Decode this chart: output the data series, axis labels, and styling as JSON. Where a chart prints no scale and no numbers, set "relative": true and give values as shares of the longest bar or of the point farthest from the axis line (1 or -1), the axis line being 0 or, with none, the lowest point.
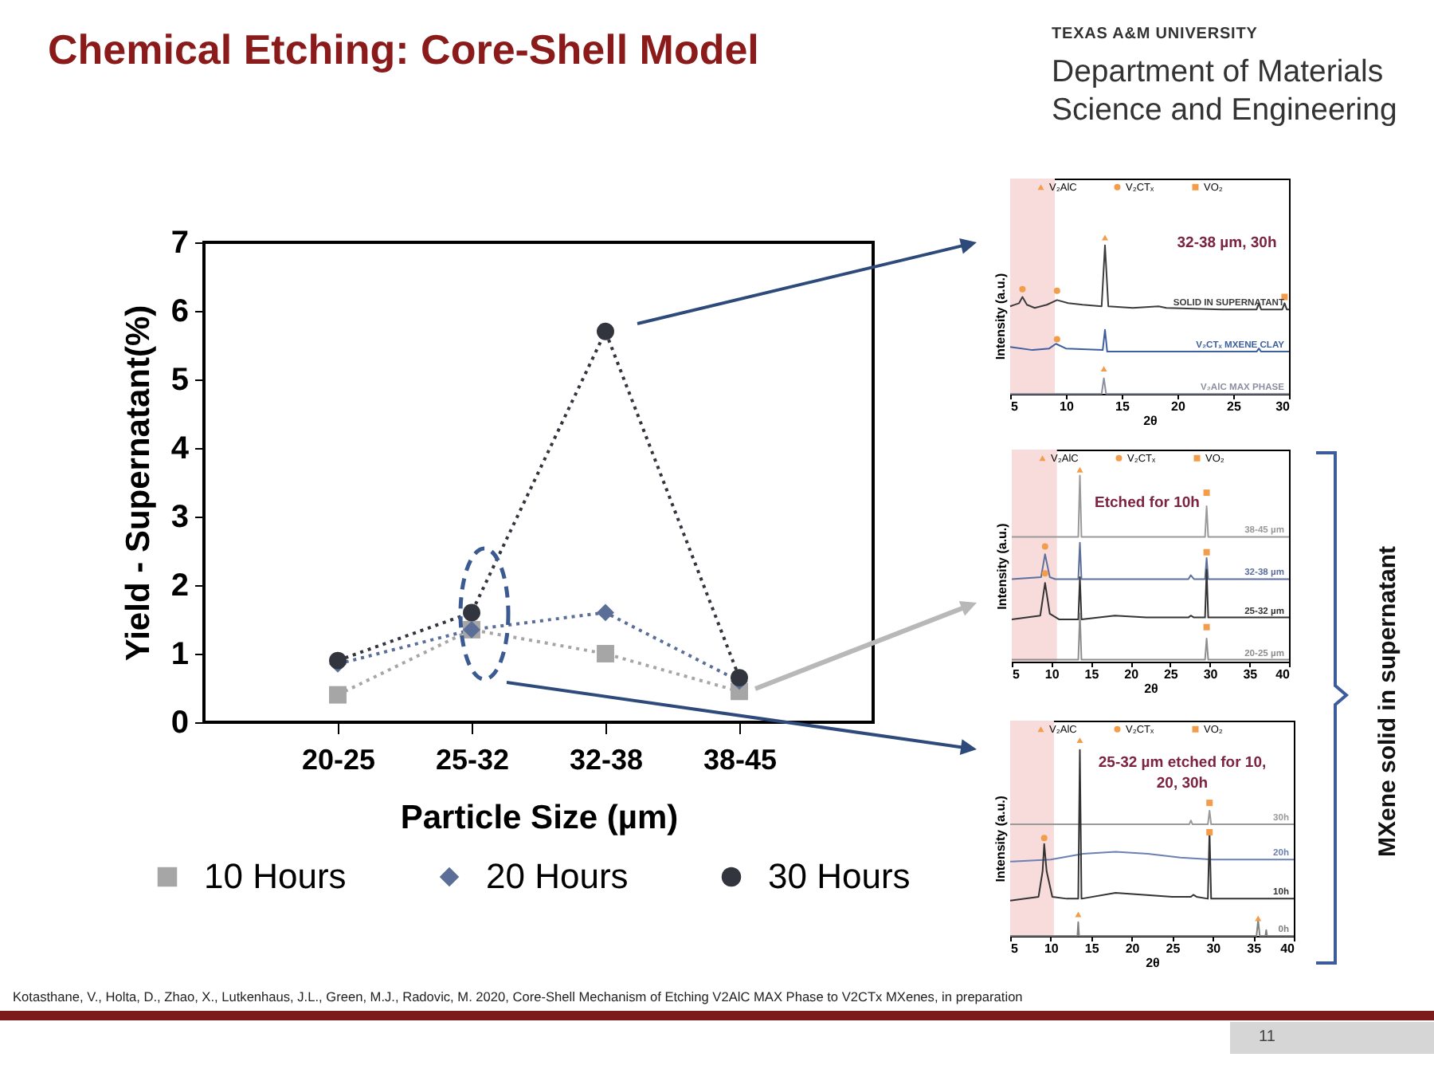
{
  "chart_data": [
    {
      "type": "line",
      "title": "Chemical Etching: Core-Shell Model",
      "xlabel": "Particle Size (µm)",
      "ylabel": "Yield - Supernatant(%)",
      "categories": [
        "20-25",
        "25-32",
        "32-38",
        "38-45"
      ],
      "ylim": [
        0,
        7
      ],
      "yticks": [
        0,
        1,
        2,
        3,
        4,
        5,
        6,
        7
      ],
      "line_style": "dotted",
      "legend": "bottom",
      "series": [
        {
          "name": "10 Hours",
          "color": "#a6a6a6",
          "marker": "square",
          "values": [
            0.4,
            1.35,
            1.0,
            0.45
          ]
        },
        {
          "name": "20 Hours",
          "color": "#5b6e98",
          "marker": "diamond",
          "values": [
            0.85,
            1.35,
            1.6,
            0.6
          ]
        },
        {
          "name": "30 Hours",
          "color": "#32353d",
          "marker": "circle",
          "values": [
            0.9,
            1.6,
            5.7,
            0.65
          ]
        }
      ],
      "annotations": [
        "TEXAS A&M UNIVERSITY",
        "Department of Materials Science and Engineering",
        "MXene solid in supernatant",
        "Kotasthane, V., Holta, D., Zhao, X., Lutkenhaus, J.L., Green, M.J., Radovic, M. 2020, Core-Shell Mechanism of Etching V2AlC MAX Phase to V2CTx MXenes, in preparation",
        "11"
      ]
    },
    {
      "type": "line",
      "title": "32-38 µm, 30h",
      "xlabel": "2θ",
      "ylabel": "Intensity (a.u.)",
      "relative": true,
      "xlim": [
        5,
        30
      ],
      "xticks": [
        5,
        10,
        15,
        20,
        25,
        30
      ],
      "legend": "top",
      "bands": [
        {
          "axis": "x",
          "from": 5,
          "to": 9,
          "color": "#f8dcdc"
        }
      ],
      "series": [
        {
          "name": "SOLID IN SUPERNATANT",
          "color": "#3c3c3c",
          "x": [
            5,
            5.8,
            6.1,
            6.5,
            7.2,
            8.3,
            9.2,
            10.2,
            11.5,
            13.2,
            13.5,
            13.8,
            16,
            18.3,
            19,
            24,
            27.1,
            27.3,
            27.5,
            29.4,
            29.6,
            29.8,
            30
          ],
          "values": [
            0.56,
            0.58,
            0.62,
            0.57,
            0.55,
            0.57,
            0.6,
            0.58,
            0.57,
            0.56,
            0.95,
            0.56,
            0.55,
            0.56,
            0.55,
            0.54,
            0.54,
            0.58,
            0.54,
            0.54,
            0.58,
            0.54,
            0.54
          ]
        },
        {
          "name": "V₂CTₓ MXENE CLAY",
          "color": "#3d5f9e",
          "x": [
            5,
            7,
            8.5,
            9.1,
            10,
            13.3,
            13.5,
            13.7,
            20,
            27.1,
            27.3,
            27.5,
            30
          ],
          "values": [
            0.3,
            0.28,
            0.29,
            0.32,
            0.29,
            0.28,
            0.41,
            0.27,
            0.27,
            0.27,
            0.29,
            0.27,
            0.27
          ]
        },
        {
          "name": "V₂AlC MAX PHASE",
          "color": "#8c8fa0",
          "x": [
            5,
            13.2,
            13.4,
            13.6,
            30
          ],
          "values": [
            0,
            0,
            0.1,
            0,
            0
          ]
        },
        {
          "name": "V₂AlC",
          "type": "scatter",
          "marker": "triangle",
          "color": "#f39c4a",
          "x": [
            13.5,
            13.4
          ],
          "values": [
            1,
            0.16
          ]
        },
        {
          "name": "V₂CTₓ",
          "type": "scatter",
          "marker": "circle",
          "color": "#f39c4a",
          "x": [
            6.1,
            9.2,
            9.2
          ],
          "values": [
            0.67,
            0.66,
            0.35
          ]
        },
        {
          "name": "VO₂",
          "type": "scatter",
          "marker": "square",
          "color": "#f39c4a",
          "x": [
            29.6
          ],
          "values": [
            0.62
          ]
        }
      ]
    },
    {
      "type": "line",
      "title": "Etched for 10h",
      "xlabel": "2θ",
      "ylabel": "Intensity (a.u.)",
      "relative": true,
      "xlim": [
        5,
        40
      ],
      "xticks": [
        5,
        10,
        15,
        20,
        25,
        30,
        35,
        40
      ],
      "legend": "top",
      "bands": [
        {
          "axis": "x",
          "from": 5,
          "to": 10.7,
          "color": "#f8dcdc"
        }
      ],
      "series": [
        {
          "name": "38-45 µm",
          "color": "#9a9a9a",
          "x": [
            5,
            13.4,
            13.6,
            13.8,
            29.4,
            29.6,
            29.8,
            40
          ],
          "values": [
            0.65,
            0.65,
            0.97,
            0.65,
            0.65,
            0.81,
            0.65,
            0.65
          ]
        },
        {
          "name": "32-38 µm",
          "color": "#5d6f9c",
          "x": [
            5,
            8.7,
            9.2,
            9.8,
            10.5,
            13.4,
            13.6,
            13.8,
            27.3,
            27.6,
            28,
            29.4,
            29.6,
            29.8,
            40
          ],
          "values": [
            0.43,
            0.44,
            0.56,
            0.44,
            0.43,
            0.43,
            0.62,
            0.43,
            0.43,
            0.45,
            0.43,
            0.43,
            0.54,
            0.43,
            0.43
          ]
        },
        {
          "name": "25-32 µm",
          "color": "#333333",
          "x": [
            5,
            8.6,
            9.2,
            9.8,
            11,
            13.4,
            13.6,
            13.8,
            18,
            22,
            27.3,
            27.6,
            28,
            29.4,
            29.6,
            29.8,
            40
          ],
          "values": [
            0.22,
            0.24,
            0.41,
            0.25,
            0.22,
            0.22,
            0.44,
            0.22,
            0.24,
            0.23,
            0.23,
            0.24,
            0.23,
            0.23,
            0.48,
            0.23,
            0.23
          ]
        },
        {
          "name": "20-25 µm",
          "color": "#8e8e8e",
          "x": [
            5,
            13.4,
            13.6,
            13.8,
            29.4,
            29.6,
            29.8,
            40
          ],
          "values": [
            0.01,
            0.01,
            0.25,
            0.01,
            0.01,
            0.12,
            0.01,
            0.01
          ]
        },
        {
          "name": "V₂AlC",
          "type": "scatter",
          "marker": "triangle",
          "color": "#f39c4a",
          "x": [
            13.6
          ],
          "values": [
            1
          ]
        },
        {
          "name": "V₂CTₓ",
          "type": "scatter",
          "marker": "circle",
          "color": "#f39c4a",
          "x": [
            9.2,
            9.2
          ],
          "values": [
            0.6,
            0.46
          ]
        },
        {
          "name": "VO₂",
          "type": "scatter",
          "marker": "square",
          "color": "#f39c4a",
          "x": [
            29.6,
            29.6,
            29.6
          ],
          "values": [
            0.88,
            0.57,
            0.18
          ]
        }
      ]
    },
    {
      "type": "line",
      "title": "25-32 µm etched for 10, 20, 30h",
      "xlabel": "2θ",
      "ylabel": "Intensity (a.u.)",
      "relative": true,
      "xlim": [
        5,
        40
      ],
      "xticks": [
        5,
        10,
        15,
        20,
        25,
        30,
        35,
        40
      ],
      "legend": "top",
      "bands": [
        {
          "axis": "x",
          "from": 5,
          "to": 10.4,
          "color": "#f8dcdc"
        }
      ],
      "series": [
        {
          "name": "30h",
          "color": "#9a9a9a",
          "x": [
            5,
            27.1,
            27.3,
            27.5,
            29.4,
            29.6,
            29.8,
            40
          ],
          "values": [
            0.57,
            0.57,
            0.59,
            0.57,
            0.57,
            0.64,
            0.57,
            0.57
          ]
        },
        {
          "name": "20h",
          "color": "#6b80b3",
          "x": [
            5,
            10,
            14,
            18,
            22,
            26,
            30,
            35,
            40
          ],
          "values": [
            0.38,
            0.39,
            0.42,
            0.43,
            0.42,
            0.4,
            0.39,
            0.39,
            0.39
          ]
        },
        {
          "name": "10h",
          "color": "#333333",
          "x": [
            5,
            8.5,
            9,
            9.2,
            9.5,
            10.2,
            12,
            13.4,
            13.6,
            13.8,
            18,
            25,
            27.3,
            27.6,
            28,
            29.4,
            29.6,
            29.8,
            36,
            40
          ],
          "values": [
            0.18,
            0.2,
            0.33,
            0.47,
            0.33,
            0.2,
            0.19,
            0.19,
            0.95,
            0.19,
            0.22,
            0.2,
            0.2,
            0.21,
            0.2,
            0.19,
            0.54,
            0.19,
            0.19,
            0.19
          ]
        },
        {
          "name": "0h",
          "color": "#808080",
          "x": [
            5,
            13.3,
            13.4,
            13.5,
            35.4,
            35.6,
            35.8,
            36.5,
            36.6,
            36.7,
            40
          ],
          "values": [
            0,
            0,
            0.07,
            0,
            0,
            0.08,
            0,
            0,
            0.03,
            0,
            0
          ]
        },
        {
          "name": "V₂AlC",
          "type": "scatter",
          "marker": "triangle",
          "color": "#f39c4a",
          "x": [
            13.6,
            13.4,
            35.6
          ],
          "values": [
            1,
            0.11,
            0.09
          ]
        },
        {
          "name": "V₂CTₓ",
          "type": "scatter",
          "marker": "circle",
          "color": "#f39c4a",
          "x": [
            9.2
          ],
          "values": [
            0.5
          ]
        },
        {
          "name": "VO₂",
          "type": "scatter",
          "marker": "square",
          "color": "#f39c4a",
          "x": [
            29.6,
            29.6
          ],
          "values": [
            0.68,
            0.53
          ]
        }
      ]
    }
  ]
}
